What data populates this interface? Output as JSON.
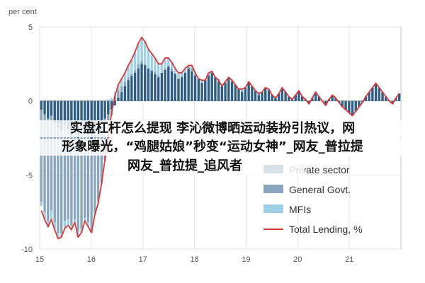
{
  "chart_data": {
    "type": "bar",
    "ylabel": "per cent",
    "ylim": [
      -10,
      5
    ],
    "yticks": [
      "5",
      "0",
      "-5",
      "-10"
    ],
    "xticks": [
      "15",
      "16",
      "17",
      "18",
      "19",
      "20",
      "21"
    ],
    "legend_position": "bottom-right",
    "series": [
      {
        "name": "Private sector",
        "color": "#2e5d86",
        "kind": "bar",
        "values": [
          -0.6,
          -0.9,
          -1.2,
          -1.0,
          -1.5,
          -1.8,
          -2.0,
          -1.6,
          -1.9,
          -2.4,
          -2.2,
          -2.5,
          -2.0,
          -1.7,
          -2.3,
          -2.6,
          -2.1,
          -1.8,
          -1.5,
          -1.2,
          -0.9,
          -0.6,
          -0.3,
          0.2,
          0.6,
          1.0,
          1.4,
          1.7,
          1.9,
          2.2,
          2.5,
          2.4,
          2.2,
          2.0,
          1.8,
          1.6,
          1.9,
          2.1,
          2.3,
          2.0,
          1.8,
          1.5,
          1.6,
          1.9,
          2.2,
          2.0,
          1.7,
          1.5,
          1.2,
          1.4,
          1.7,
          1.9,
          1.6,
          1.3,
          1.0,
          1.2,
          1.5,
          1.3,
          1.1,
          0.8,
          0.6,
          0.9,
          1.2,
          1.0,
          0.7,
          0.4,
          0.6,
          0.9,
          0.7,
          0.4,
          0.2,
          0.5,
          0.8,
          0.6,
          0.3,
          0.1,
          0.4,
          0.6,
          0.3,
          0.1,
          -0.2,
          0.2,
          0.5,
          0.3,
          0.0,
          -0.3,
          0.1,
          0.4,
          0.2,
          -0.1,
          -0.4,
          -0.6,
          -0.8,
          -1.0,
          -0.7,
          -0.4,
          -0.1,
          0.3,
          0.6,
          0.9,
          1.2,
          0.9,
          0.6,
          0.3,
          0.0,
          -0.2,
          0.2,
          0.5
        ]
      },
      {
        "name": "General Govt.",
        "color": "#8aa6bf",
        "kind": "bar",
        "values": [
          -6.2,
          -6.6,
          -6.9,
          -6.4,
          -6.7,
          -7.1,
          -6.9,
          -6.5,
          -6.1,
          -6.0,
          -5.8,
          -6.3,
          -6.6,
          -6.2,
          -5.9,
          -6.1,
          -5.5,
          -4.9,
          -4.0,
          -2.8,
          -1.6,
          -0.4,
          0.3,
          0.5,
          0.4,
          0.3,
          0.2,
          0.1,
          0.2,
          0.3,
          0.2,
          0.1,
          0.0,
          0.1,
          0.2,
          0.1,
          0.0,
          0.1,
          0.1,
          0.2,
          0.1,
          0.0,
          0.1,
          0.0,
          0.1,
          0.2,
          0.1,
          0.0,
          0.1,
          0.0,
          0.1,
          0.1,
          0.0,
          0.1,
          0.0,
          0.1,
          0.0,
          0.1,
          0.0,
          0.0,
          0.1,
          0.0,
          0.1,
          0.0,
          0.0,
          0.1,
          0.0,
          0.0,
          0.1,
          0.0,
          0.0,
          0.0,
          0.1,
          0.0,
          0.0,
          0.0,
          0.0,
          0.1,
          0.0,
          0.0,
          0.0,
          0.0,
          0.1,
          0.0,
          0.0,
          0.0,
          0.0,
          0.0,
          0.0,
          0.0,
          0.0,
          0.0,
          0.0,
          0.0,
          0.0,
          0.0,
          0.0,
          0.0,
          0.0,
          0.0,
          0.0,
          0.0,
          0.0,
          0.0,
          0.0,
          0.0,
          0.0,
          0.0
        ]
      },
      {
        "name": "MFIs",
        "color": "#9fd0e6",
        "kind": "bar",
        "values": [
          -0.3,
          -0.5,
          -0.4,
          -0.6,
          -0.5,
          -0.4,
          -0.3,
          -0.5,
          -0.4,
          -0.3,
          -0.2,
          -0.4,
          -0.3,
          -0.2,
          -0.3,
          -0.2,
          -0.1,
          -0.2,
          -0.1,
          0.0,
          0.1,
          0.2,
          0.3,
          0.4,
          0.5,
          0.6,
          0.8,
          1.0,
          1.2,
          1.4,
          1.6,
          1.5,
          1.3,
          1.1,
          0.9,
          0.8,
          0.6,
          0.7,
          0.5,
          0.4,
          0.3,
          0.4,
          0.2,
          0.3,
          0.1,
          0.2,
          0.1,
          0.0,
          0.1,
          0.0,
          0.1,
          0.0,
          0.0,
          0.1,
          0.0,
          0.0,
          0.1,
          0.0,
          0.0,
          0.0,
          0.1,
          0.0,
          0.0,
          0.0,
          0.0,
          0.1,
          0.0,
          0.0,
          0.0,
          0.0,
          0.0,
          0.0,
          0.0,
          0.0,
          0.0,
          0.0,
          0.0,
          0.0,
          0.0,
          0.0,
          0.0,
          0.0,
          0.0,
          0.0,
          0.0,
          0.0,
          0.0,
          0.0,
          0.0,
          0.0,
          0.0,
          0.0,
          0.0,
          0.0,
          0.0,
          0.0,
          0.0,
          0.0,
          0.0,
          0.0,
          0.0,
          0.0,
          0.0,
          0.0,
          0.0,
          0.0,
          0.0,
          0.0
        ]
      },
      {
        "name": "Total Lending, %",
        "color": "#d43a3a",
        "kind": "line",
        "values": [
          -7.4,
          -8.0,
          -8.5,
          -8.0,
          -8.7,
          -9.3,
          -9.2,
          -8.6,
          -8.4,
          -8.7,
          -8.2,
          -9.2,
          -8.9,
          -8.1,
          -8.5,
          -8.9,
          -7.7,
          -6.9,
          -5.6,
          -4.0,
          -2.4,
          -0.8,
          0.3,
          1.1,
          1.5,
          1.9,
          2.4,
          2.8,
          3.3,
          3.9,
          4.3,
          4.0,
          3.5,
          3.2,
          2.9,
          2.5,
          2.5,
          2.9,
          2.9,
          2.6,
          2.2,
          1.9,
          1.9,
          2.2,
          2.4,
          2.4,
          1.9,
          1.5,
          1.4,
          1.4,
          1.9,
          2.0,
          1.6,
          1.4,
          1.0,
          1.3,
          1.6,
          1.4,
          1.1,
          0.8,
          0.8,
          0.9,
          1.3,
          1.0,
          0.7,
          0.5,
          0.6,
          0.9,
          0.8,
          0.4,
          0.2,
          0.5,
          0.9,
          0.6,
          0.3,
          0.1,
          0.4,
          0.7,
          0.3,
          0.1,
          -0.2,
          0.2,
          0.6,
          0.3,
          0.0,
          -0.3,
          0.1,
          0.4,
          0.2,
          -0.1,
          -0.4,
          -0.6,
          -0.8,
          -1.0,
          -0.7,
          -0.4,
          -0.1,
          0.3,
          0.6,
          0.9,
          1.2,
          0.9,
          0.6,
          0.3,
          0.0,
          -0.2,
          0.2,
          0.5
        ]
      }
    ]
  },
  "overlay": {
    "line1": "实盘杠杆怎么提现 李沁微博晒运动装扮引热议，网",
    "line2": "形象曝光，“鸡腿姑娘”秒变“运动女神”_网友_普拉提",
    "line3": "网友_普拉提_追风者"
  }
}
